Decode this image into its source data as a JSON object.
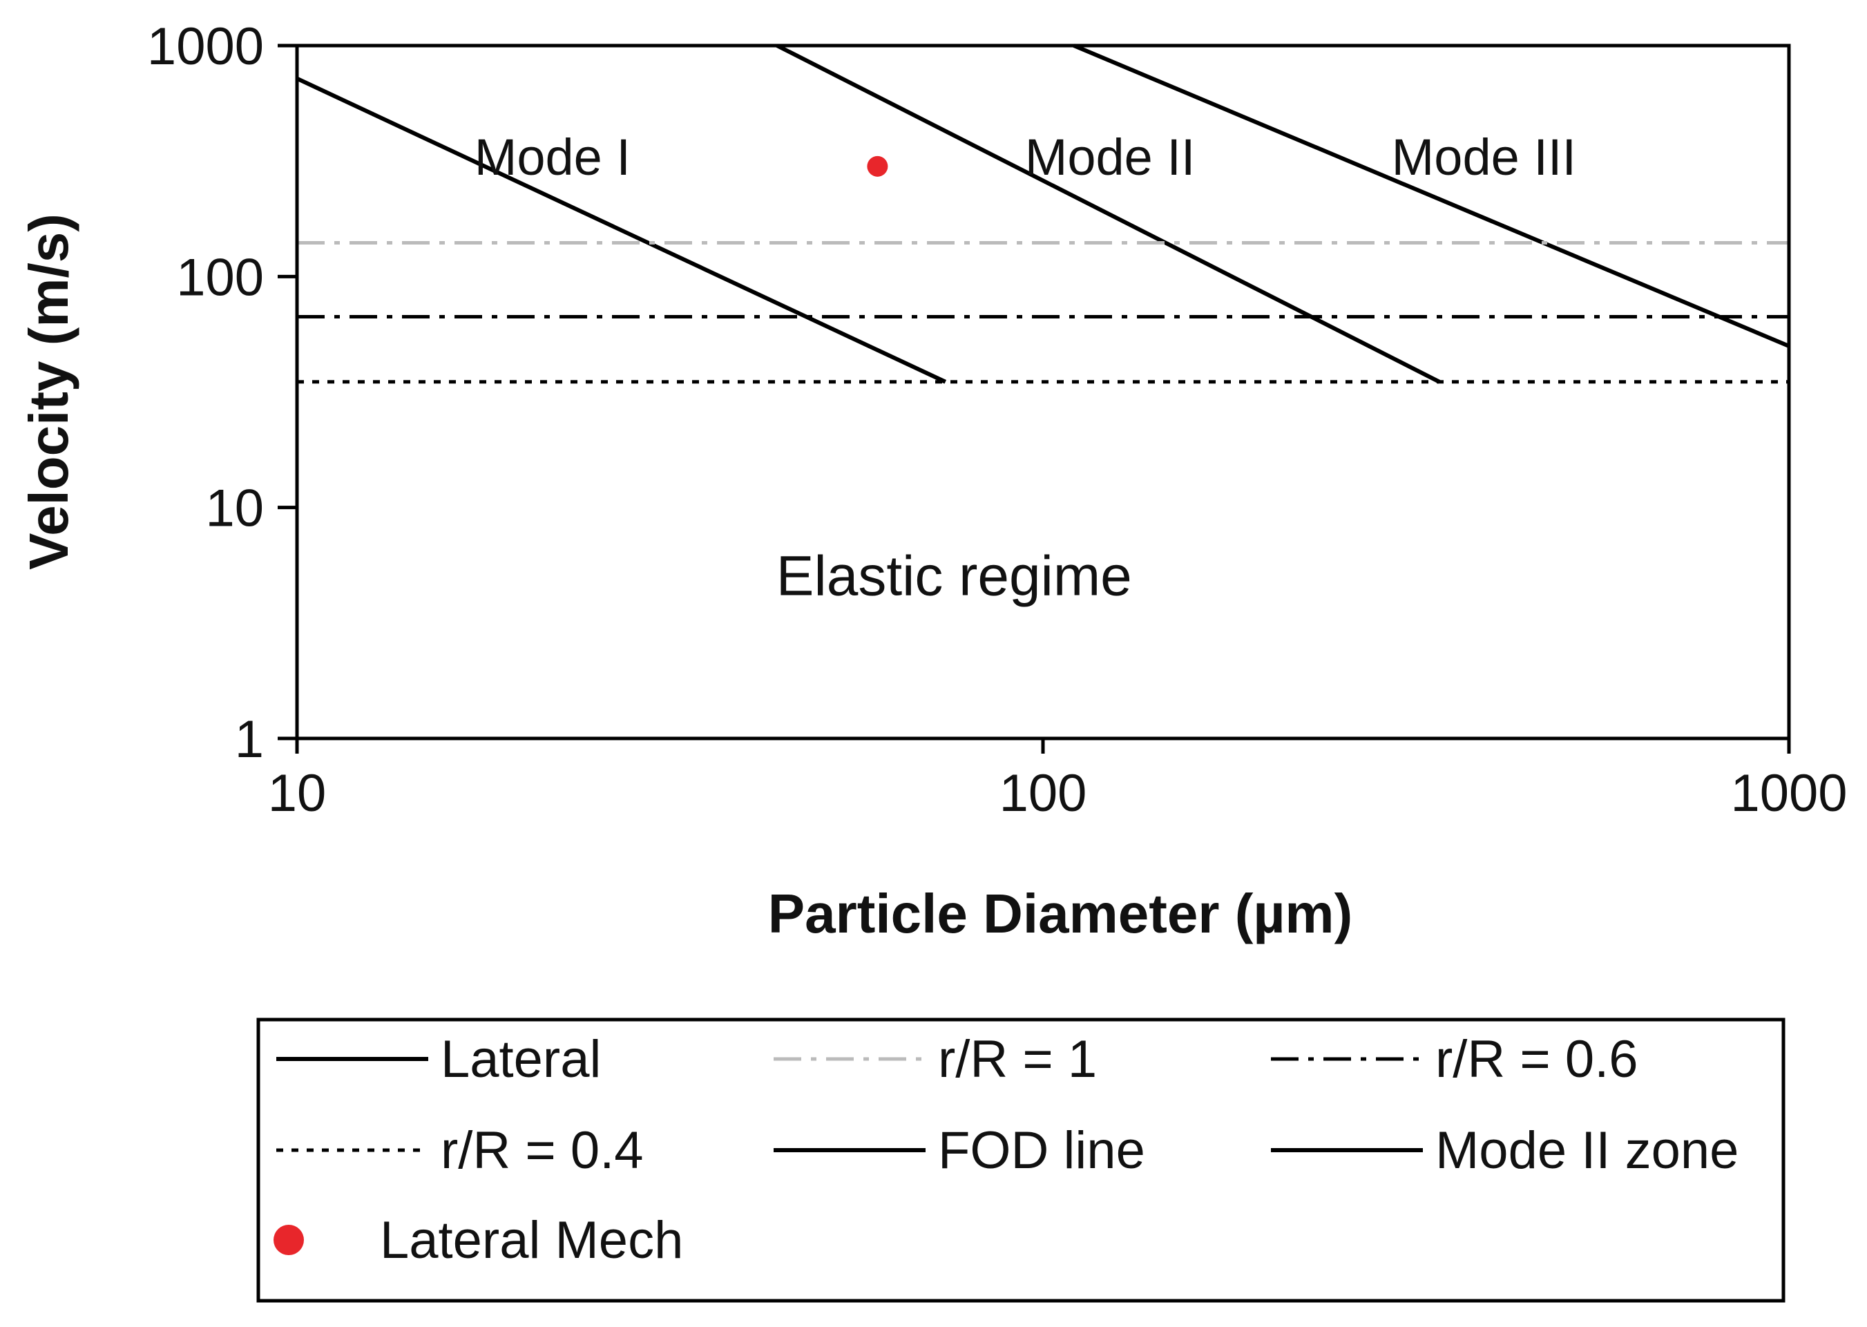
{
  "chart_data": {
    "type": "line",
    "x_scale": "log",
    "y_scale": "log",
    "xlim": [
      10,
      1000
    ],
    "ylim": [
      1,
      1000
    ],
    "x_ticks": [
      "10",
      "100",
      "1000"
    ],
    "y_ticks": [
      "1",
      "10",
      "100",
      "1000"
    ],
    "xlabel": "Particle Diameter (µm)",
    "ylabel": "Velocity (m/s)",
    "region_labels": {
      "mode1": "Mode I",
      "mode2": "Mode II",
      "mode3": "Mode III",
      "elastic": "Elastic regime"
    },
    "region_label_positions": {
      "mode1": {
        "x": 22,
        "y": 330
      },
      "mode2": {
        "x": 123,
        "y": 330
      },
      "mode3": {
        "x": 390,
        "y": 330
      },
      "elastic": {
        "x": 76,
        "y": 5
      }
    },
    "series": [
      {
        "name": "Lateral",
        "style": "solid",
        "color": "#000000",
        "x": [
          10,
          74
        ],
        "y": [
          720,
          35
        ]
      },
      {
        "name": "FOD line",
        "style": "solid",
        "color": "#000000",
        "x": [
          44,
          340
        ],
        "y": [
          1000,
          35
        ]
      },
      {
        "name": "Mode II zone",
        "style": "solid",
        "color": "#000000",
        "x": [
          110,
          1000
        ],
        "y": [
          1000,
          50
        ]
      },
      {
        "name": "r/R = 1",
        "style": "dashdot",
        "color": "#bbbbbb",
        "x": [
          10,
          1000
        ],
        "y": [
          140,
          140
        ]
      },
      {
        "name": "r/R = 0.6",
        "style": "dashdot",
        "color": "#000000",
        "x": [
          10,
          1000
        ],
        "y": [
          67,
          67
        ]
      },
      {
        "name": "r/R = 0.4",
        "style": "dotted",
        "color": "#000000",
        "x": [
          10,
          1000
        ],
        "y": [
          35,
          35
        ]
      },
      {
        "name": "Lateral Mech",
        "style": "marker",
        "color": "#e8262b",
        "x": [
          60
        ],
        "y": [
          300
        ]
      }
    ],
    "legend": {
      "placement": "bottom",
      "entries": [
        {
          "label": "Lateral",
          "style": "solid",
          "color": "#000000"
        },
        {
          "label": "r/R = 1",
          "style": "dashdot",
          "color": "#bbbbbb"
        },
        {
          "label": "r/R = 0.6",
          "style": "dashdot",
          "color": "#000000"
        },
        {
          "label": "r/R = 0.4",
          "style": "dotted",
          "color": "#000000"
        },
        {
          "label": "FOD line",
          "style": "solid",
          "color": "#000000"
        },
        {
          "label": "Mode II zone",
          "style": "solid",
          "color": "#000000"
        },
        {
          "label": "Lateral Mech",
          "style": "marker",
          "color": "#e8262b"
        }
      ]
    },
    "grid": false
  }
}
